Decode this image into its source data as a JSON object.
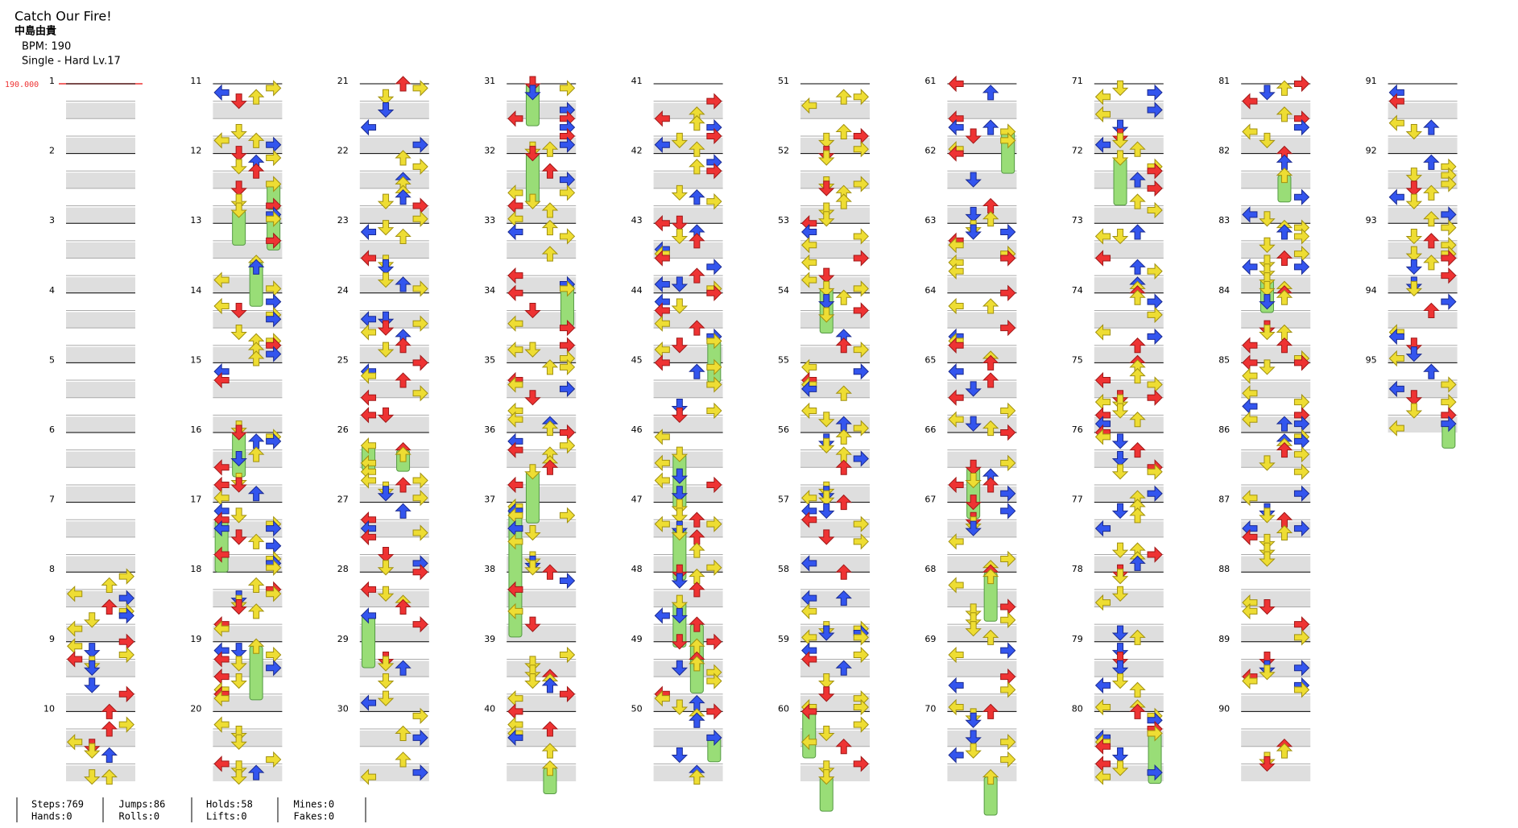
{
  "header": {
    "title": "Catch Our Fire!",
    "artist": "中島由貴",
    "bpm": "BPM: 190",
    "difficulty": "Single - Hard  Lv.17"
  },
  "bpm_marker": "190.000",
  "measures": [
    1,
    2,
    3,
    4,
    5,
    6,
    7,
    8,
    9,
    10,
    11,
    12,
    13,
    14,
    15,
    16,
    17,
    18,
    19,
    20,
    21,
    22,
    23,
    24,
    25,
    26,
    27,
    28,
    29,
    30,
    31,
    32,
    33,
    34,
    35,
    36,
    37,
    38,
    39,
    40,
    41,
    42,
    43,
    44,
    45,
    46,
    47,
    48,
    49,
    50,
    51,
    52,
    53,
    54,
    55,
    56,
    57,
    58,
    59,
    60,
    61,
    62,
    63,
    64,
    65,
    66,
    67,
    68,
    69,
    70,
    71,
    72,
    73,
    74,
    75,
    76,
    77,
    78,
    79,
    80,
    81,
    82,
    83,
    84,
    85,
    86,
    87,
    88,
    89,
    90,
    91,
    92,
    93,
    94,
    95
  ],
  "stats": [
    [
      "Steps:769",
      "Hands:0"
    ],
    [
      "Jumps:86",
      "Rolls:0"
    ],
    [
      "Holds:58",
      "Lifts:0"
    ],
    [
      "Mines:0",
      "Fakes:0"
    ]
  ]
}
